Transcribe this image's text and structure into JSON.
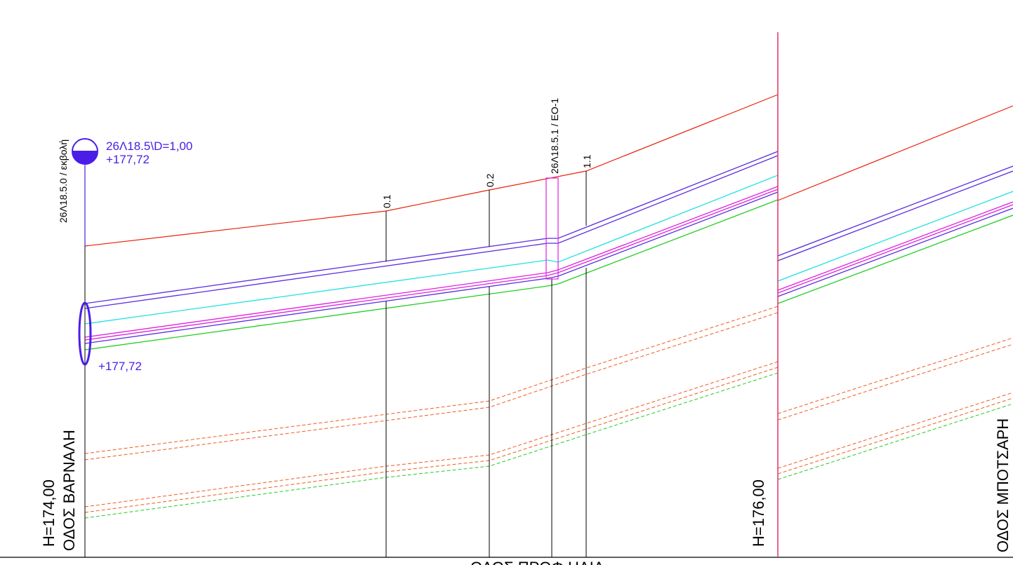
{
  "labels": {
    "left_datum": "H=174,00",
    "left_street": "ΟΔΟΣ ΒΑΡΝΑΛΗ",
    "right_datum": "H=176,00",
    "right_street": "ΟΔΟΣ ΜΠΟΤΣΑΡΗ",
    "bottom_street": "ΟΔΟΣ ΠΡΟΦ.ΗΛΙΑ",
    "start_station": "26Λ18.5.0 / εκβολή",
    "manhole_station": "26Λ18.5.1 / ΕΟ-1",
    "station_01": "0.1",
    "station_02": "0.2",
    "station_11": "1.1",
    "outlet_id": "26Λ18.5\\D=1,00",
    "outlet_level_top": "+177,72",
    "outlet_level_bottom": "+177,72"
  },
  "colors": {
    "ground_line": "#e8220a",
    "pipe_line": "#5a2de0",
    "water_line": "#22e0e0",
    "invert_line": "#e020e0",
    "foundation_line": "#22cc22",
    "utility_dashed": "#f05a1e",
    "utility_dashed_green": "#22cc22",
    "section_break": "#e0306a",
    "outlet_blue": "#4a1ee6",
    "annotation": "#000000"
  }
}
